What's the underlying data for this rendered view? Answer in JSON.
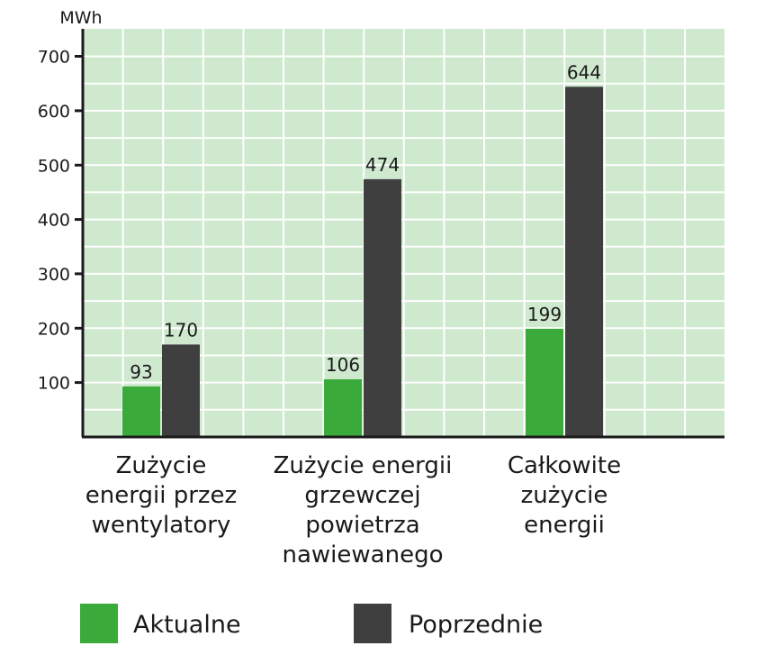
{
  "chart_data": {
    "type": "bar",
    "ylabel": "MWh",
    "ylim": [
      0,
      720
    ],
    "yticks": [
      100,
      200,
      300,
      400,
      500,
      600,
      700
    ],
    "grid": true,
    "legend_position": "bottom",
    "categories": [
      [
        "Zużycie",
        "energii przez",
        "wentylatory"
      ],
      [
        "Zużycie energii",
        "grzewczej",
        "powietrza",
        "nawiewanego"
      ],
      [
        "Całkowite",
        "zużycie",
        "energii"
      ]
    ],
    "series": [
      {
        "name": "Aktualne",
        "values": [
          93,
          106,
          199
        ]
      },
      {
        "name": "Poprzednie",
        "values": [
          170,
          474,
          644
        ]
      }
    ],
    "colors": {
      "Aktualne": "#3aaa3a",
      "Poprzednie": "#3f3f3f",
      "plot_background": "#cfe9cf",
      "grid": "#ffffff",
      "axis": "#1a1a1a"
    }
  }
}
